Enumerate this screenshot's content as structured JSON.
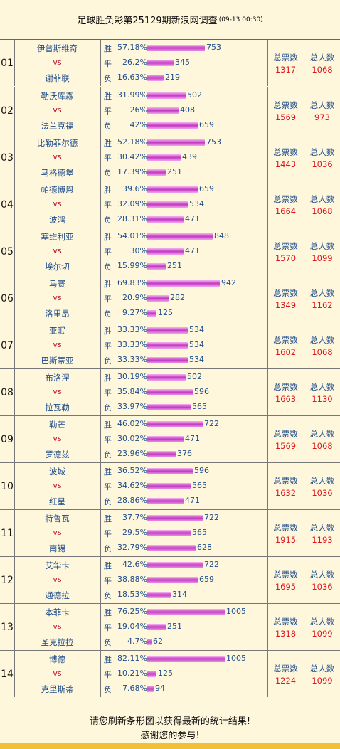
{
  "header": {
    "title": "足球胜负彩第25129期新浪网调查",
    "date": "(09-13 00:30)"
  },
  "labels": {
    "vs": "vs",
    "total_votes": "总票数",
    "total_people": "总人数"
  },
  "footer": {
    "line1": "请您刷新条形图以获得最新的统计结果!",
    "line2": "感谢您的参与!"
  },
  "colors": {
    "accent": "#c23ac0",
    "text_blue": "#1d4c8c",
    "number_red": "#e0161d",
    "strip": "#f2c037"
  },
  "matches": [
    {
      "idx": "01",
      "home": "伊普斯维奇",
      "away": "谢菲联",
      "win": {
        "label": "胜",
        "pct": "57.18%",
        "count": 753
      },
      "draw": {
        "label": "平",
        "pct": "26.2%",
        "count": 345
      },
      "lose": {
        "label": "负",
        "pct": "16.63%",
        "count": 219
      },
      "total_votes": "1317",
      "total_people": "1068"
    },
    {
      "idx": "02",
      "home": "勒沃库森",
      "away": "法兰克福",
      "win": {
        "label": "胜",
        "pct": "31.99%",
        "count": 502
      },
      "draw": {
        "label": "平",
        "pct": "26%",
        "count": 408
      },
      "lose": {
        "label": "负",
        "pct": "42%",
        "count": 659
      },
      "total_votes": "1569",
      "total_people": "973"
    },
    {
      "idx": "03",
      "home": "比勒菲尔德",
      "away": "马格德堡",
      "win": {
        "label": "胜",
        "pct": "52.18%",
        "count": 753
      },
      "draw": {
        "label": "平",
        "pct": "30.42%",
        "count": 439
      },
      "lose": {
        "label": "负",
        "pct": "17.39%",
        "count": 251
      },
      "total_votes": "1443",
      "total_people": "1036"
    },
    {
      "idx": "04",
      "home": "帕德博恩",
      "away": "波鸿",
      "win": {
        "label": "胜",
        "pct": "39.6%",
        "count": 659
      },
      "draw": {
        "label": "平",
        "pct": "32.09%",
        "count": 534
      },
      "lose": {
        "label": "负",
        "pct": "28.31%",
        "count": 471
      },
      "total_votes": "1664",
      "total_people": "1068"
    },
    {
      "idx": "05",
      "home": "塞维利亚",
      "away": "埃尔切",
      "win": {
        "label": "胜",
        "pct": "54.01%",
        "count": 848
      },
      "draw": {
        "label": "平",
        "pct": "30%",
        "count": 471
      },
      "lose": {
        "label": "负",
        "pct": "15.99%",
        "count": 251
      },
      "total_votes": "1570",
      "total_people": "1099"
    },
    {
      "idx": "06",
      "home": "马赛",
      "away": "洛里昂",
      "win": {
        "label": "胜",
        "pct": "69.83%",
        "count": 942
      },
      "draw": {
        "label": "平",
        "pct": "20.9%",
        "count": 282
      },
      "lose": {
        "label": "负",
        "pct": "9.27%",
        "count": 125
      },
      "total_votes": "1349",
      "total_people": "1162"
    },
    {
      "idx": "07",
      "home": "亚眠",
      "away": "巴斯蒂亚",
      "win": {
        "label": "胜",
        "pct": "33.33%",
        "count": 534
      },
      "draw": {
        "label": "平",
        "pct": "33.33%",
        "count": 534
      },
      "lose": {
        "label": "负",
        "pct": "33.33%",
        "count": 534
      },
      "total_votes": "1602",
      "total_people": "1068"
    },
    {
      "idx": "08",
      "home": "布洛涅",
      "away": "拉瓦勒",
      "win": {
        "label": "胜",
        "pct": "30.19%",
        "count": 502
      },
      "draw": {
        "label": "平",
        "pct": "35.84%",
        "count": 596
      },
      "lose": {
        "label": "负",
        "pct": "33.97%",
        "count": 565
      },
      "total_votes": "1663",
      "total_people": "1130"
    },
    {
      "idx": "09",
      "home": "勒芒",
      "away": "罗德兹",
      "win": {
        "label": "胜",
        "pct": "46.02%",
        "count": 722
      },
      "draw": {
        "label": "平",
        "pct": "30.02%",
        "count": 471
      },
      "lose": {
        "label": "负",
        "pct": "23.96%",
        "count": 376
      },
      "total_votes": "1569",
      "total_people": "1068"
    },
    {
      "idx": "10",
      "home": "波城",
      "away": "红星",
      "win": {
        "label": "胜",
        "pct": "36.52%",
        "count": 596
      },
      "draw": {
        "label": "平",
        "pct": "34.62%",
        "count": 565
      },
      "lose": {
        "label": "负",
        "pct": "28.86%",
        "count": 471
      },
      "total_votes": "1632",
      "total_people": "1036"
    },
    {
      "idx": "11",
      "home": "特鲁瓦",
      "away": "南锡",
      "win": {
        "label": "胜",
        "pct": "37.7%",
        "count": 722
      },
      "draw": {
        "label": "平",
        "pct": "29.5%",
        "count": 565
      },
      "lose": {
        "label": "负",
        "pct": "32.79%",
        "count": 628
      },
      "total_votes": "1915",
      "total_people": "1193"
    },
    {
      "idx": "12",
      "home": "艾华卡",
      "away": "通德拉",
      "win": {
        "label": "胜",
        "pct": "42.6%",
        "count": 722
      },
      "draw": {
        "label": "平",
        "pct": "38.88%",
        "count": 659
      },
      "lose": {
        "label": "负",
        "pct": "18.53%",
        "count": 314
      },
      "total_votes": "1695",
      "total_people": "1036"
    },
    {
      "idx": "13",
      "home": "本菲卡",
      "away": "圣克拉拉",
      "win": {
        "label": "胜",
        "pct": "76.25%",
        "count": 1005
      },
      "draw": {
        "label": "平",
        "pct": "19.04%",
        "count": 251
      },
      "lose": {
        "label": "负",
        "pct": "4.7%",
        "count": 62
      },
      "total_votes": "1318",
      "total_people": "1099"
    },
    {
      "idx": "14",
      "home": "博德",
      "away": "克里斯蒂",
      "win": {
        "label": "胜",
        "pct": "82.11%",
        "count": 1005
      },
      "draw": {
        "label": "平",
        "pct": "10.21%",
        "count": 125
      },
      "lose": {
        "label": "负",
        "pct": "7.68%",
        "count": 94
      },
      "total_votes": "1224",
      "total_people": "1099"
    }
  ]
}
